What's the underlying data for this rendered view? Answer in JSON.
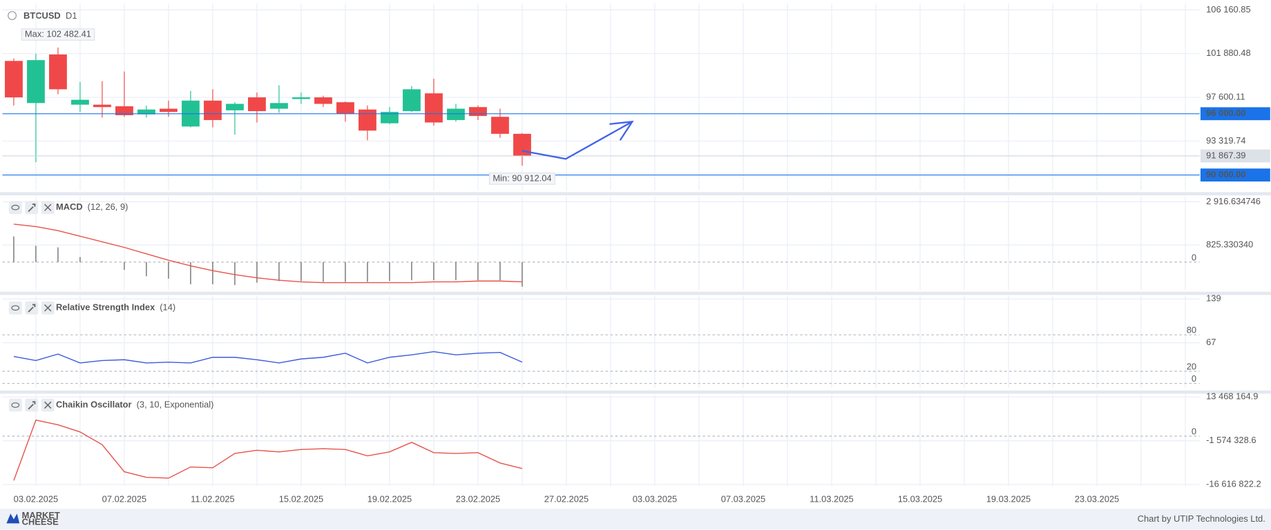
{
  "header": {
    "symbol": "BTCUSD",
    "timeframe": "D1"
  },
  "footer": {
    "logo": [
      "MARKET",
      "CHEESE"
    ],
    "credit": "Chart by UTIP Technologies Ltd."
  },
  "chart_data": [
    {
      "type": "candlestick",
      "categories": [
        null,
        "03.02.2025",
        null,
        null,
        null,
        "07.02.2025",
        null,
        null,
        null,
        "11.02.2025",
        null,
        null,
        null,
        "15.02.2025",
        null,
        null,
        null,
        "19.02.2025",
        null,
        null,
        null,
        "23.02.2025",
        null,
        null,
        null,
        "27.02.2025",
        null,
        null,
        null,
        "03.03.2025",
        null,
        null,
        null,
        "07.03.2025",
        null,
        null,
        null,
        "11.03.2025",
        null,
        null,
        null,
        "15.03.2025",
        null,
        null,
        null,
        "19.03.2025",
        null,
        null,
        null,
        "23.03.2025"
      ],
      "open": [
        101167,
        97045,
        101801,
        96886,
        96886,
        96727,
        95935,
        96490,
        94746,
        97282,
        96331,
        97600,
        96490,
        97441,
        97600,
        97124,
        96411,
        95063,
        96252,
        97996,
        95380,
        96648,
        95697,
        94032,
        null,
        null,
        null,
        null,
        null,
        null,
        null,
        null,
        null,
        null,
        null,
        null,
        null,
        null,
        null,
        null,
        null,
        null,
        null,
        null,
        null,
        null,
        null,
        null,
        null,
        null
      ],
      "high": [
        101405,
        101880,
        102482.41,
        99106,
        99185,
        100136,
        96807,
        97282,
        98234,
        98392,
        97124,
        98075,
        98788,
        98075,
        97758,
        97203,
        96807,
        96648,
        98709,
        99423,
        96965,
        96807,
        96490,
        94111,
        null,
        null,
        null,
        null,
        null,
        null,
        null,
        null,
        null,
        null,
        null,
        null,
        null,
        null,
        null,
        null,
        null,
        null,
        null,
        null,
        null,
        null,
        null,
        null,
        null,
        null
      ],
      "low": [
        96807,
        91258,
        97916,
        96173,
        95618,
        95697,
        95618,
        95697,
        94666,
        94666,
        93953,
        95142,
        96093,
        96965,
        96648,
        95221,
        93398,
        94983,
        96173,
        94825,
        95221,
        95380,
        93636,
        90912.04,
        null,
        null,
        null,
        null,
        null,
        null,
        null,
        null,
        null,
        null,
        null,
        null,
        null,
        null,
        null,
        null,
        null,
        null,
        null,
        null,
        null,
        null,
        null,
        null,
        null,
        null
      ],
      "close": [
        97600,
        101246,
        98392,
        97362,
        96648,
        95855,
        96411,
        96173,
        97282,
        95380,
        96965,
        96252,
        97045,
        97600,
        96965,
        96014,
        94349,
        96173,
        98392,
        95142,
        96490,
        95776,
        94032,
        91867.39,
        null,
        null,
        null,
        null,
        null,
        null,
        null,
        null,
        null,
        null,
        null,
        null,
        null,
        null,
        null,
        null,
        null,
        null,
        null,
        null,
        null,
        null,
        null,
        null,
        null,
        null
      ],
      "up_color": "#22c193",
      "down_color": "#f04848",
      "ylim": [
        88484,
        106795
      ],
      "yticks": [
        {
          "value": 106160.85,
          "label": "106 160.85"
        },
        {
          "value": 101880.48,
          "label": "101 880.48"
        },
        {
          "value": 97600.11,
          "label": "97 600.11"
        },
        {
          "value": 93319.74,
          "label": "93 319.74"
        }
      ],
      "levels": [
        {
          "value": 96000,
          "label": "96 000.00",
          "color": "#1a73e8"
        },
        {
          "value": 90000,
          "label": "90 000.00",
          "color": "#1a73e8"
        }
      ],
      "current": {
        "value": 91867.39,
        "label": "91 867.39"
      },
      "max_marker": {
        "value": 102482.41,
        "label": "Max: 102 482.41"
      },
      "min_marker": {
        "value": 90912.04,
        "label": "Min: 90 912.04"
      }
    },
    {
      "type": "indicator",
      "title": "MACD",
      "params": "(12, 26, 9)",
      "ylim": [
        -1356,
        3187
      ],
      "yticks": [
        {
          "value": 2916.634746,
          "label": "2 916.634746"
        },
        {
          "value": 825.33034,
          "label": "825.330340"
        }
      ],
      "levels": [
        0
      ],
      "series": [
        {
          "style": "histogram",
          "color": "#555555",
          "values": [
            1239,
            786,
            709,
            244,
            40,
            -376,
            -686,
            -802,
            -1073,
            -1073,
            -1112,
            -995,
            -918,
            -918,
            -957,
            -957,
            -957,
            -918,
            -879,
            -879,
            -879,
            -879,
            -879,
            -1189,
            null,
            null,
            null,
            null,
            null,
            null,
            null,
            null,
            null,
            null,
            null,
            null,
            null,
            null,
            null,
            null,
            null,
            null,
            null,
            null,
            null,
            null,
            null,
            null,
            null,
            null
          ]
        },
        {
          "style": "line",
          "color": "#e8524a",
          "values": [
            1832,
            1716,
            1522,
            1251,
            980,
            709,
            399,
            89,
            -182,
            -414,
            -608,
            -763,
            -879,
            -957,
            -995,
            -995,
            -995,
            -995,
            -995,
            -957,
            -957,
            -918,
            -918,
            -957,
            null,
            null,
            null,
            null,
            null,
            null,
            null,
            null,
            null,
            null,
            null,
            null,
            null,
            null,
            null,
            null,
            null,
            null,
            null,
            null,
            null,
            null,
            null,
            null,
            null,
            null
          ]
        }
      ]
    },
    {
      "type": "indicator",
      "title": "Relative Strength Index",
      "params": "(14)",
      "ylim": [
        -7.7,
        144.3
      ],
      "yticks": [
        139,
        67
      ],
      "levels": [
        80,
        20,
        0
      ],
      "series": [
        {
          "style": "line",
          "color": "#3b5bdb",
          "values": [
            44.3,
            37.7,
            48.3,
            33.7,
            37.7,
            39.0,
            33.7,
            35.0,
            33.7,
            43.0,
            43.0,
            39.0,
            33.7,
            40.3,
            43.0,
            49.7,
            33.7,
            43.0,
            47.0,
            52.3,
            47.0,
            49.7,
            51.0,
            35.0,
            null,
            null,
            null,
            null,
            null,
            null,
            null,
            null,
            null,
            null,
            null,
            null,
            null,
            null,
            null,
            null,
            null,
            null,
            null,
            null,
            null,
            null,
            null,
            null,
            null,
            null
          ]
        }
      ]
    },
    {
      "type": "indicator",
      "title": "Chaikin Oscillator",
      "params": "(3, 10, Exponential)",
      "ylim": [
        -17163822,
        14288665
      ],
      "yticks": [
        {
          "value": 13468164.9,
          "label": "13 468 164.9"
        },
        {
          "value": -1574328.6,
          "label": "-1 574 328.6"
        },
        {
          "value": -16616822.2,
          "label": "-16 616 822.2"
        }
      ],
      "levels": [
        0
      ],
      "series": [
        {
          "style": "line",
          "color": "#e8524a",
          "values": [
            -15249329,
            5536671,
            3895671,
            1434171,
            -2941829,
            -12240829,
            -14155329,
            -14428829,
            -10599829,
            -10873329,
            -5950329,
            -4856329,
            -5403329,
            -4582829,
            -4309329,
            -4582829,
            -6770829,
            -5403329,
            -2121329,
            -5676829,
            -5950329,
            -5676829,
            -9232329,
            -11146829,
            null,
            null,
            null,
            null,
            null,
            null,
            null,
            null,
            null,
            null,
            null,
            null,
            null,
            null,
            null,
            null,
            null,
            null,
            null,
            null,
            null,
            null,
            null,
            null,
            null,
            null
          ]
        }
      ]
    }
  ]
}
